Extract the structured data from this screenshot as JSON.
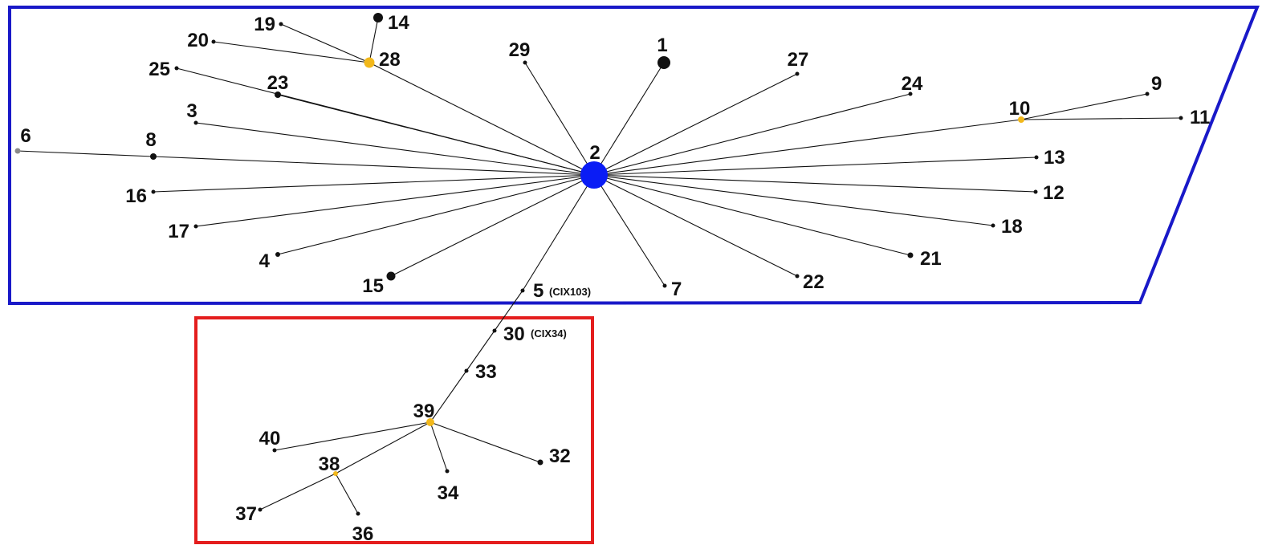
{
  "colors": {
    "region_blue": "#1919c8",
    "region_red": "#e41d1d",
    "node_black": "#111111",
    "node_hub": "#0a1cf5",
    "node_yellow": "#f2b81b",
    "node_gray": "#8a8a8a"
  },
  "nodes": [
    {
      "id": "1",
      "label": "1",
      "color": "black"
    },
    {
      "id": "2",
      "label": "2",
      "color": "blue"
    },
    {
      "id": "3",
      "label": "3",
      "color": "black"
    },
    {
      "id": "4",
      "label": "4",
      "color": "black"
    },
    {
      "id": "5",
      "label": "5",
      "sublabel": "(CIX103)",
      "color": "black"
    },
    {
      "id": "6",
      "label": "6",
      "color": "gray"
    },
    {
      "id": "7",
      "label": "7",
      "color": "black"
    },
    {
      "id": "8",
      "label": "8",
      "color": "black"
    },
    {
      "id": "9",
      "label": "9",
      "color": "black"
    },
    {
      "id": "10",
      "label": "10",
      "color": "yellow"
    },
    {
      "id": "11",
      "label": "11",
      "color": "black"
    },
    {
      "id": "12",
      "label": "12",
      "color": "black"
    },
    {
      "id": "13",
      "label": "13",
      "color": "black"
    },
    {
      "id": "14",
      "label": "14",
      "color": "black"
    },
    {
      "id": "15",
      "label": "15",
      "color": "black"
    },
    {
      "id": "16",
      "label": "16",
      "color": "black"
    },
    {
      "id": "17",
      "label": "17",
      "color": "black"
    },
    {
      "id": "18",
      "label": "18",
      "color": "black"
    },
    {
      "id": "19",
      "label": "19",
      "color": "black"
    },
    {
      "id": "20",
      "label": "20",
      "color": "black"
    },
    {
      "id": "21",
      "label": "21",
      "color": "black"
    },
    {
      "id": "22",
      "label": "22",
      "color": "black"
    },
    {
      "id": "23",
      "label": "23",
      "color": "black"
    },
    {
      "id": "24",
      "label": "24",
      "color": "black"
    },
    {
      "id": "25",
      "label": "25",
      "color": "black"
    },
    {
      "id": "27",
      "label": "27",
      "color": "black"
    },
    {
      "id": "28",
      "label": "28",
      "color": "yellow"
    },
    {
      "id": "29",
      "label": "29",
      "color": "black"
    },
    {
      "id": "30",
      "label": "30",
      "sublabel": "(CIX34)",
      "color": "black"
    },
    {
      "id": "32",
      "label": "32",
      "color": "black"
    },
    {
      "id": "33",
      "label": "33",
      "color": "black"
    },
    {
      "id": "34",
      "label": "34",
      "color": "black"
    },
    {
      "id": "36",
      "label": "36",
      "color": "black"
    },
    {
      "id": "37",
      "label": "37",
      "color": "black"
    },
    {
      "id": "38",
      "label": "38",
      "color": "yellow"
    },
    {
      "id": "39",
      "label": "39",
      "color": "yellow"
    },
    {
      "id": "40",
      "label": "40",
      "color": "black"
    }
  ],
  "edges": [
    [
      "2",
      "1"
    ],
    [
      "2",
      "3"
    ],
    [
      "2",
      "4"
    ],
    [
      "2",
      "5"
    ],
    [
      "2",
      "7"
    ],
    [
      "2",
      "8"
    ],
    [
      "2",
      "10"
    ],
    [
      "2",
      "12"
    ],
    [
      "2",
      "13"
    ],
    [
      "2",
      "15"
    ],
    [
      "2",
      "16"
    ],
    [
      "2",
      "17"
    ],
    [
      "2",
      "18"
    ],
    [
      "2",
      "21"
    ],
    [
      "2",
      "22"
    ],
    [
      "2",
      "23"
    ],
    [
      "2",
      "24"
    ],
    [
      "2",
      "25"
    ],
    [
      "2",
      "27"
    ],
    [
      "2",
      "28"
    ],
    [
      "2",
      "29"
    ],
    [
      "8",
      "6"
    ],
    [
      "10",
      "9"
    ],
    [
      "10",
      "11"
    ],
    [
      "28",
      "14"
    ],
    [
      "28",
      "19"
    ],
    [
      "28",
      "20"
    ],
    [
      "5",
      "30"
    ],
    [
      "30",
      "33"
    ],
    [
      "33",
      "39"
    ],
    [
      "39",
      "40"
    ],
    [
      "39",
      "38"
    ],
    [
      "39",
      "34"
    ],
    [
      "39",
      "32"
    ],
    [
      "38",
      "37"
    ],
    [
      "38",
      "36"
    ]
  ]
}
